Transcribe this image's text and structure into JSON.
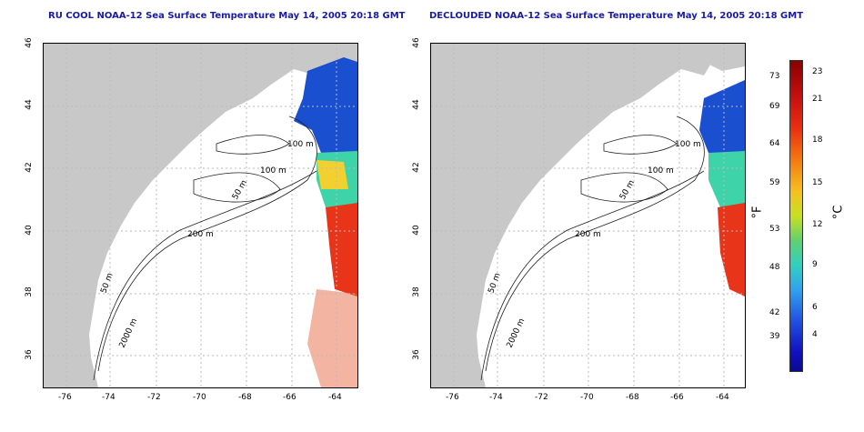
{
  "titles": {
    "left": "RU COOL NOAA-12 Sea Surface Temperature May 14, 2005 20:18 GMT",
    "right": "DECLOUDED NOAA-12 Sea Surface Temperature May 14, 2005 20:18 GMT"
  },
  "axes": {
    "x_ticks": [
      "-76",
      "-74",
      "-72",
      "-70",
      "-68",
      "-66",
      "-64"
    ],
    "y_ticks": [
      "46",
      "44",
      "42",
      "40",
      "38",
      "36"
    ]
  },
  "contour_labels": [
    "100 m",
    "100 m",
    "50 m",
    "200 m",
    "50 m",
    "2000 m"
  ],
  "colorbar": {
    "fahrenheit": [
      "73",
      "69",
      "64",
      "59",
      "53",
      "48",
      "42",
      "39"
    ],
    "celsius": [
      "23",
      "21",
      "18",
      "15",
      "12",
      "9",
      "6",
      "4"
    ],
    "unit_f": "°F",
    "unit_c": "°C"
  },
  "colors": {
    "land": "#c8c8c8",
    "title": "#1a1aa6",
    "grid": "#bbbbbb"
  }
}
